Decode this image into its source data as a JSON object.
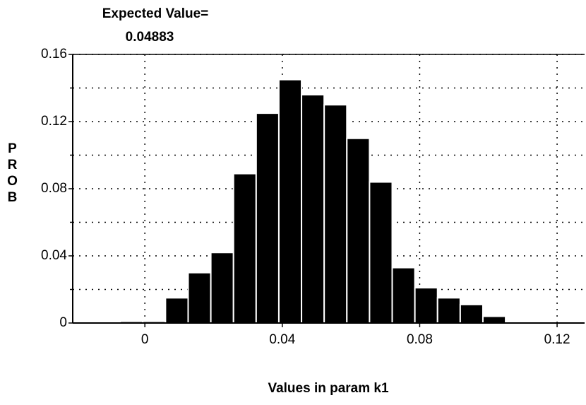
{
  "chart_data": {
    "type": "histogram",
    "title": "Expected Value=",
    "subtitle": "0.04883",
    "xlabel": "Values in param k1",
    "ylabel": "PROB",
    "bins": [
      -0.0072,
      -0.0006,
      0.006,
      0.0126,
      0.0192,
      0.0258,
      0.0324,
      0.039,
      0.0456,
      0.0522,
      0.0588,
      0.0654,
      0.072,
      0.0786,
      0.0852,
      0.0918,
      0.0984,
      0.105
    ],
    "values": [
      0.001,
      0.001,
      0.015,
      0.03,
      0.042,
      0.089,
      0.125,
      0.145,
      0.136,
      0.13,
      0.11,
      0.084,
      0.033,
      0.021,
      0.015,
      0.011,
      0.004
    ],
    "color": "#000000",
    "xlim": [
      -0.021,
      0.128
    ],
    "ylim": [
      0,
      0.16
    ],
    "xticks": [
      0,
      0.04,
      0.08,
      0.12
    ],
    "yticks": [
      0,
      0.04,
      0.08,
      0.12,
      0.16
    ],
    "y_minor_ticks": [
      0.02,
      0.06,
      0.1,
      0.14
    ],
    "grid": true
  }
}
